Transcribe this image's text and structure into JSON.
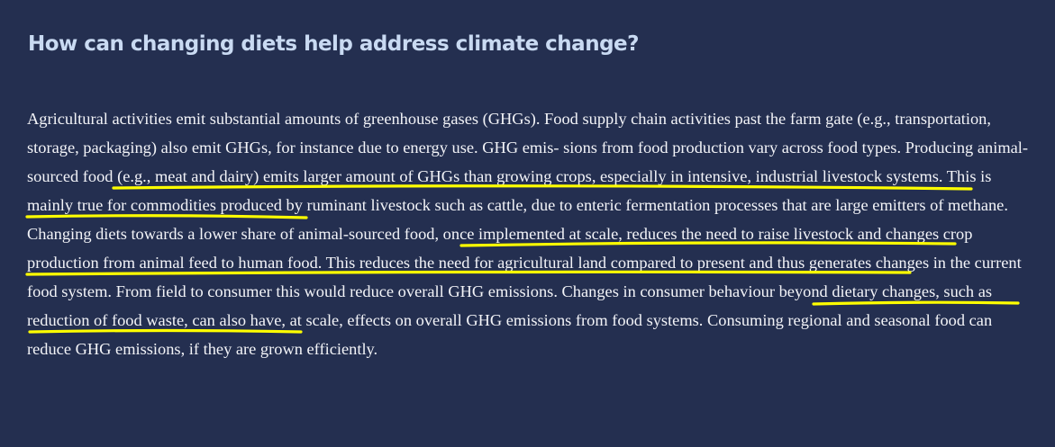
{
  "heading": "How can changing diets help address climate change?",
  "paragraph": {
    "seg1": "Agricultural activities emit substantial amounts of greenhouse gases (GHGs). Food supply chain activities past the farm gate (e.g., transportation, storage, packaging) also emit GHGs, for instance due to energy use. GHG emis- sions from food production vary across food types. ",
    "highlight1": "Producing animal-sourced food (e.g., meat and dairy) emits larger amount of GHGs than growing crops, especially in intensive, industrial livestock systems.",
    "seg2": " This is mainly true for commodities produced by ruminant livestock such as cattle, due to enteric fermentation processes that are large emitters of methane. ",
    "highlight2": "Changing diets towards a lower share of animal-sourced food, once implemented at scale, reduces the need to raise livestock and changes crop production from animal feed to human food.",
    "seg3": " This reduces the need for agricultural land compared to present and thus generates changes in the current food system. ",
    "highlight3": "From field to consumer this would reduce overall GHG emissions.",
    "seg4": " Changes in consumer behaviour beyond dietary changes, such as reduction of food waste, can also have, at scale, effects on overall GHG emissions from food systems. Consuming regional and seasonal food can reduce GHG emissions, if they are grown efficiently."
  },
  "colors": {
    "background": "#242f50",
    "heading": "#c9daf2",
    "text": "#f3f4f8",
    "highlight_underline": "#ffff00"
  }
}
